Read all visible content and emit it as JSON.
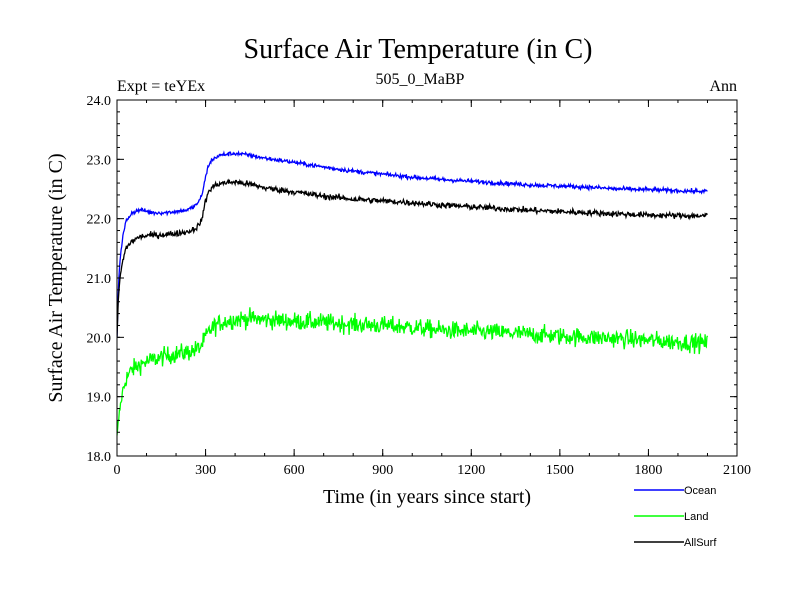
{
  "chart_data": {
    "type": "line",
    "title": "Surface Air Temperature (in C)",
    "subtitle_left": "Expt = teYEx",
    "subtitle_center": "505_0_MaBP",
    "subtitle_right": "Ann",
    "xlabel": "Time (in years since start)",
    "ylabel": "Surface Air Temperature (in C)",
    "xlim": [
      0,
      2100
    ],
    "ylim": [
      18.0,
      24.0
    ],
    "xticks": [
      0,
      300,
      600,
      900,
      1200,
      1500,
      1800,
      2100
    ],
    "yticks": [
      18.0,
      19.0,
      20.0,
      21.0,
      22.0,
      23.0,
      24.0
    ],
    "xtick_labels": [
      "0",
      "300",
      "600",
      "900",
      "1200",
      "1500",
      "1800",
      "2100"
    ],
    "ytick_labels": [
      "18.0",
      "19.0",
      "20.0",
      "21.0",
      "22.0",
      "23.0",
      "24.0"
    ],
    "legend_position": "bottom-right, outside plot",
    "series": [
      {
        "name": "Ocean",
        "color": "#0000ff",
        "noise": 0.035,
        "x": [
          0,
          5,
          10,
          20,
          30,
          50,
          80,
          120,
          160,
          200,
          240,
          260,
          280,
          290,
          300,
          310,
          320,
          340,
          360,
          400,
          450,
          500,
          600,
          700,
          800,
          900,
          1000,
          1100,
          1200,
          1300,
          1400,
          1500,
          1600,
          1700,
          1800,
          1900,
          2000
        ],
        "values": [
          20.0,
          20.9,
          21.3,
          21.7,
          21.95,
          22.1,
          22.15,
          22.1,
          22.1,
          22.12,
          22.15,
          22.2,
          22.3,
          22.45,
          22.7,
          22.9,
          22.98,
          23.05,
          23.08,
          23.1,
          23.07,
          23.02,
          22.95,
          22.87,
          22.8,
          22.75,
          22.7,
          22.66,
          22.63,
          22.6,
          22.57,
          22.55,
          22.53,
          22.5,
          22.49,
          22.47,
          22.46
        ]
      },
      {
        "name": "Land",
        "color": "#00ff00",
        "noise": 0.15,
        "x": [
          0,
          5,
          10,
          20,
          30,
          50,
          80,
          120,
          160,
          200,
          240,
          260,
          280,
          290,
          300,
          310,
          320,
          340,
          360,
          400,
          450,
          500,
          600,
          700,
          800,
          900,
          1000,
          1100,
          1200,
          1300,
          1400,
          1500,
          1600,
          1700,
          1800,
          1900,
          2000
        ],
        "values": [
          18.3,
          18.6,
          18.8,
          19.1,
          19.3,
          19.45,
          19.55,
          19.62,
          19.68,
          19.72,
          19.75,
          19.78,
          19.82,
          19.9,
          20.0,
          20.08,
          20.15,
          20.22,
          20.26,
          20.3,
          20.32,
          20.3,
          20.27,
          20.25,
          20.22,
          20.2,
          20.17,
          20.12,
          20.1,
          20.08,
          20.05,
          20.02,
          20.0,
          19.98,
          19.95,
          19.92,
          19.9
        ]
      },
      {
        "name": "AllSurf",
        "color": "#000000",
        "noise": 0.05,
        "x": [
          0,
          5,
          10,
          20,
          30,
          50,
          80,
          120,
          160,
          200,
          240,
          260,
          280,
          290,
          300,
          310,
          320,
          340,
          360,
          400,
          450,
          500,
          600,
          700,
          800,
          900,
          1000,
          1100,
          1200,
          1300,
          1400,
          1500,
          1600,
          1700,
          1800,
          1900,
          2000
        ],
        "values": [
          20.0,
          20.7,
          21.0,
          21.3,
          21.5,
          21.62,
          21.7,
          21.72,
          21.73,
          21.75,
          21.78,
          21.82,
          21.9,
          22.05,
          22.3,
          22.45,
          22.52,
          22.58,
          22.6,
          22.62,
          22.58,
          22.52,
          22.45,
          22.38,
          22.33,
          22.3,
          22.27,
          22.23,
          22.2,
          22.17,
          22.14,
          22.12,
          22.1,
          22.08,
          22.06,
          22.05,
          22.05
        ]
      }
    ]
  }
}
